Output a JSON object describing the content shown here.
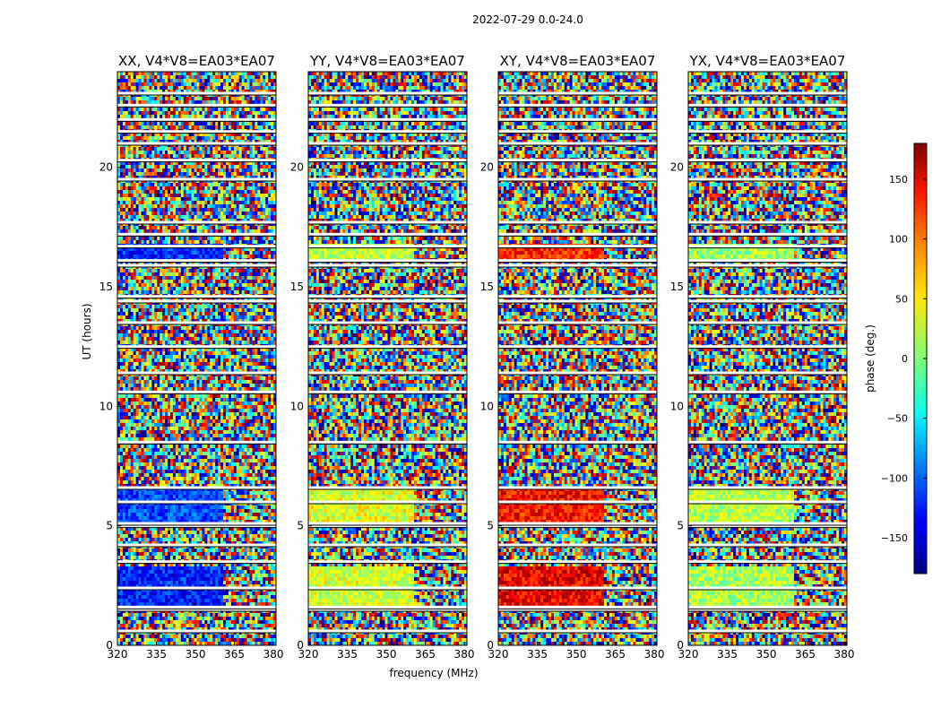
{
  "figure": {
    "suptitle": "2022-07-29 0.0-24.0",
    "xlabel": "frequency (MHz)",
    "ylabel": "UT (hours)"
  },
  "chart_data": {
    "type": "heatmap",
    "value_quantity": "visibility phase (deg.)",
    "x": {
      "label": "frequency (MHz)",
      "range": [
        320,
        381
      ],
      "ticks": [
        320,
        335,
        350,
        365,
        380
      ]
    },
    "y": {
      "label": "UT (hours)",
      "range": [
        0,
        24
      ],
      "ticks": [
        0,
        5,
        10,
        15,
        20
      ]
    },
    "colorbar": {
      "label": "phase (deg.)",
      "range": [
        -180,
        180
      ],
      "ticks": [
        -150,
        -100,
        -50,
        0,
        50,
        100,
        150
      ],
      "tick_labels": [
        "−150",
        "−100",
        "−50",
        "0",
        "50",
        "100",
        "150"
      ],
      "colormap": "jet"
    },
    "panels": [
      {
        "title": "XX, V4*V8=EA03*EA07",
        "pol": "XX",
        "ylabel": "UT (hours)"
      },
      {
        "title": "YY, V4*V8=EA03*EA07",
        "pol": "YY",
        "ylabel": ""
      },
      {
        "title": "XY, V4*V8=EA03*EA07",
        "pol": "XY",
        "ylabel": ""
      },
      {
        "title": "YX, V4*V8=EA03*EA07",
        "pol": "YX",
        "ylabel": ""
      }
    ],
    "flagged_time_gaps_hours": [
      0.6,
      1.5,
      1.6,
      2.4,
      3.5,
      4.2,
      5.0,
      5.1,
      6.0,
      6.6,
      8.5,
      10.6,
      11.4,
      12.5,
      13.5,
      14.4,
      14.6,
      15.9,
      16.1,
      16.7,
      17.2,
      17.7,
      19.5,
      20.3,
      21.0,
      21.5,
      22.0,
      22.6,
      23.1
    ],
    "coherent_blocks": [
      {
        "pol": "XX",
        "t0": 16.0,
        "t1": 16.8,
        "f0": 320,
        "f1": 361,
        "phase": -120
      },
      {
        "pol": "XX",
        "t0": 5.0,
        "t1": 6.6,
        "f0": 320,
        "f1": 361,
        "phase": -110
      },
      {
        "pol": "XX",
        "t0": 1.6,
        "t1": 3.3,
        "f0": 320,
        "f1": 361,
        "phase": -125
      },
      {
        "pol": "YY",
        "t0": 16.0,
        "t1": 16.8,
        "f0": 320,
        "f1": 361,
        "phase": 20
      },
      {
        "pol": "YY",
        "t0": 5.0,
        "t1": 6.6,
        "f0": 320,
        "f1": 361,
        "phase": 35
      },
      {
        "pol": "YY",
        "t0": 1.6,
        "t1": 3.3,
        "f0": 320,
        "f1": 361,
        "phase": 30
      },
      {
        "pol": "XY",
        "t0": 16.0,
        "t1": 16.8,
        "f0": 320,
        "f1": 361,
        "phase": 120
      },
      {
        "pol": "XY",
        "t0": 5.0,
        "t1": 6.6,
        "f0": 320,
        "f1": 361,
        "phase": 130
      },
      {
        "pol": "XY",
        "t0": 1.6,
        "t1": 3.3,
        "f0": 320,
        "f1": 361,
        "phase": 140
      },
      {
        "pol": "YX",
        "t0": 16.0,
        "t1": 16.8,
        "f0": 320,
        "f1": 361,
        "phase": 10
      },
      {
        "pol": "YX",
        "t0": 5.0,
        "t1": 6.6,
        "f0": 320,
        "f1": 361,
        "phase": 20
      },
      {
        "pol": "YX",
        "t0": 1.6,
        "t1": 3.3,
        "f0": 320,
        "f1": 361,
        "phase": 15
      }
    ]
  }
}
